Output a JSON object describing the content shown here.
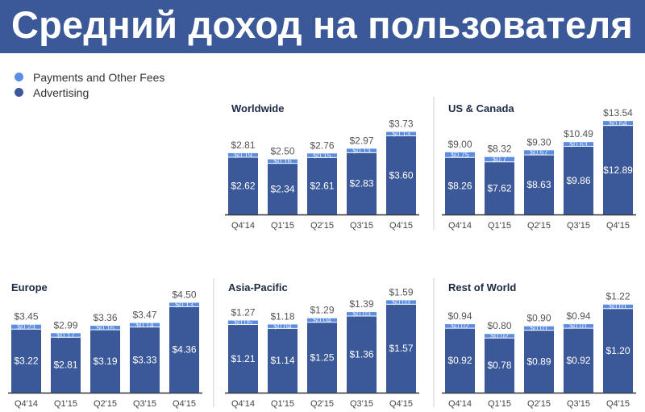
{
  "title": "Средний доход на пользователя",
  "legend": [
    {
      "label": "Payments and Other Fees",
      "color": "#5b8ee0"
    },
    {
      "label": "Advertising",
      "color": "#3b5998"
    }
  ],
  "chart_data": [
    {
      "type": "bar",
      "stacked": true,
      "title": "Worldwide",
      "categories": [
        "Q4'14",
        "Q1'15",
        "Q2'15",
        "Q3'15",
        "Q4'15"
      ],
      "series": [
        {
          "name": "Advertising",
          "values": [
            2.62,
            2.34,
            2.61,
            2.83,
            3.6
          ]
        },
        {
          "name": "Payments and Other Fees",
          "values": [
            0.19,
            0.16,
            0.15,
            0.13,
            0.13
          ]
        }
      ],
      "totals": [
        2.81,
        2.5,
        2.76,
        2.97,
        3.73
      ]
    },
    {
      "type": "bar",
      "stacked": true,
      "title": "US & Canada",
      "categories": [
        "Q4'14",
        "Q1'15",
        "Q2'15",
        "Q3'15",
        "Q4'15"
      ],
      "series": [
        {
          "name": "Advertising",
          "values": [
            8.26,
            7.62,
            8.63,
            9.86,
            12.89
          ]
        },
        {
          "name": "Payments and Other Fees",
          "values": [
            0.75,
            0.7,
            0.67,
            0.63,
            0.64
          ]
        }
      ],
      "totals": [
        9.0,
        8.32,
        9.3,
        10.49,
        13.54
      ]
    },
    {
      "type": "bar",
      "stacked": true,
      "title": "Europe",
      "categories": [
        "Q4'14",
        "Q1'15",
        "Q2'15",
        "Q3'15",
        "Q4'15"
      ],
      "series": [
        {
          "name": "Advertising",
          "values": [
            3.22,
            2.81,
            3.19,
            3.33,
            4.36
          ]
        },
        {
          "name": "Payments and Other Fees",
          "values": [
            0.23,
            0.17,
            0.16,
            0.14,
            0.13
          ]
        }
      ],
      "totals": [
        3.45,
        2.99,
        3.36,
        3.47,
        4.5
      ]
    },
    {
      "type": "bar",
      "stacked": true,
      "title": "Asia-Pacific",
      "categories": [
        "Q4'14",
        "Q1'15",
        "Q2'15",
        "Q3'15",
        "Q4'15"
      ],
      "series": [
        {
          "name": "Advertising",
          "values": [
            1.21,
            1.14,
            1.25,
            1.36,
            1.57
          ]
        },
        {
          "name": "Payments and Other Fees",
          "values": [
            0.05,
            0.04,
            0.04,
            0.03,
            0.03
          ]
        }
      ],
      "totals": [
        1.27,
        1.18,
        1.29,
        1.39,
        1.59
      ]
    },
    {
      "type": "bar",
      "stacked": true,
      "title": "Rest of World",
      "categories": [
        "Q4'14",
        "Q1'15",
        "Q2'15",
        "Q3'15",
        "Q4'15"
      ],
      "series": [
        {
          "name": "Advertising",
          "values": [
            0.92,
            0.78,
            0.89,
            0.92,
            1.2
          ]
        },
        {
          "name": "Payments and Other Fees",
          "values": [
            0.02,
            0.02,
            0.01,
            0.01,
            0.01
          ]
        }
      ],
      "totals": [
        0.94,
        0.8,
        0.9,
        0.94,
        1.22
      ]
    }
  ]
}
